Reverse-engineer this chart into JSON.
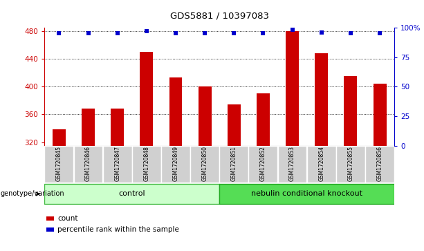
{
  "title": "GDS5881 / 10397083",
  "categories": [
    "GSM1720845",
    "GSM1720846",
    "GSM1720847",
    "GSM1720848",
    "GSM1720849",
    "GSM1720850",
    "GSM1720851",
    "GSM1720852",
    "GSM1720853",
    "GSM1720854",
    "GSM1720855",
    "GSM1720856"
  ],
  "bar_values": [
    338,
    368,
    368,
    450,
    413,
    400,
    374,
    390,
    480,
    448,
    415,
    404
  ],
  "percentile_values": [
    95,
    95,
    95,
    97,
    95,
    95,
    95,
    95,
    98,
    96,
    95,
    95
  ],
  "bar_color": "#cc0000",
  "dot_color": "#0000cc",
  "ylim_left": [
    315,
    485
  ],
  "ylim_right": [
    0,
    100
  ],
  "yticks_left": [
    320,
    360,
    400,
    440,
    480
  ],
  "yticks_right": [
    0,
    25,
    50,
    75,
    100
  ],
  "yticklabels_right": [
    "0",
    "25",
    "50",
    "75",
    "100%"
  ],
  "grid_ticks": [
    360,
    400,
    440,
    480
  ],
  "control_label": "control",
  "knockout_label": "nebulin conditional knockout",
  "genotype_label": "genotype/variation",
  "legend_count": "count",
  "legend_percentile": "percentile rank within the sample",
  "control_color": "#ccffcc",
  "knockout_color": "#55dd55",
  "tick_area_color": "#cccccc",
  "title_color": "#000000",
  "left_axis_color": "#cc0000",
  "right_axis_color": "#0000cc",
  "n_control": 6,
  "n_knockout": 6
}
